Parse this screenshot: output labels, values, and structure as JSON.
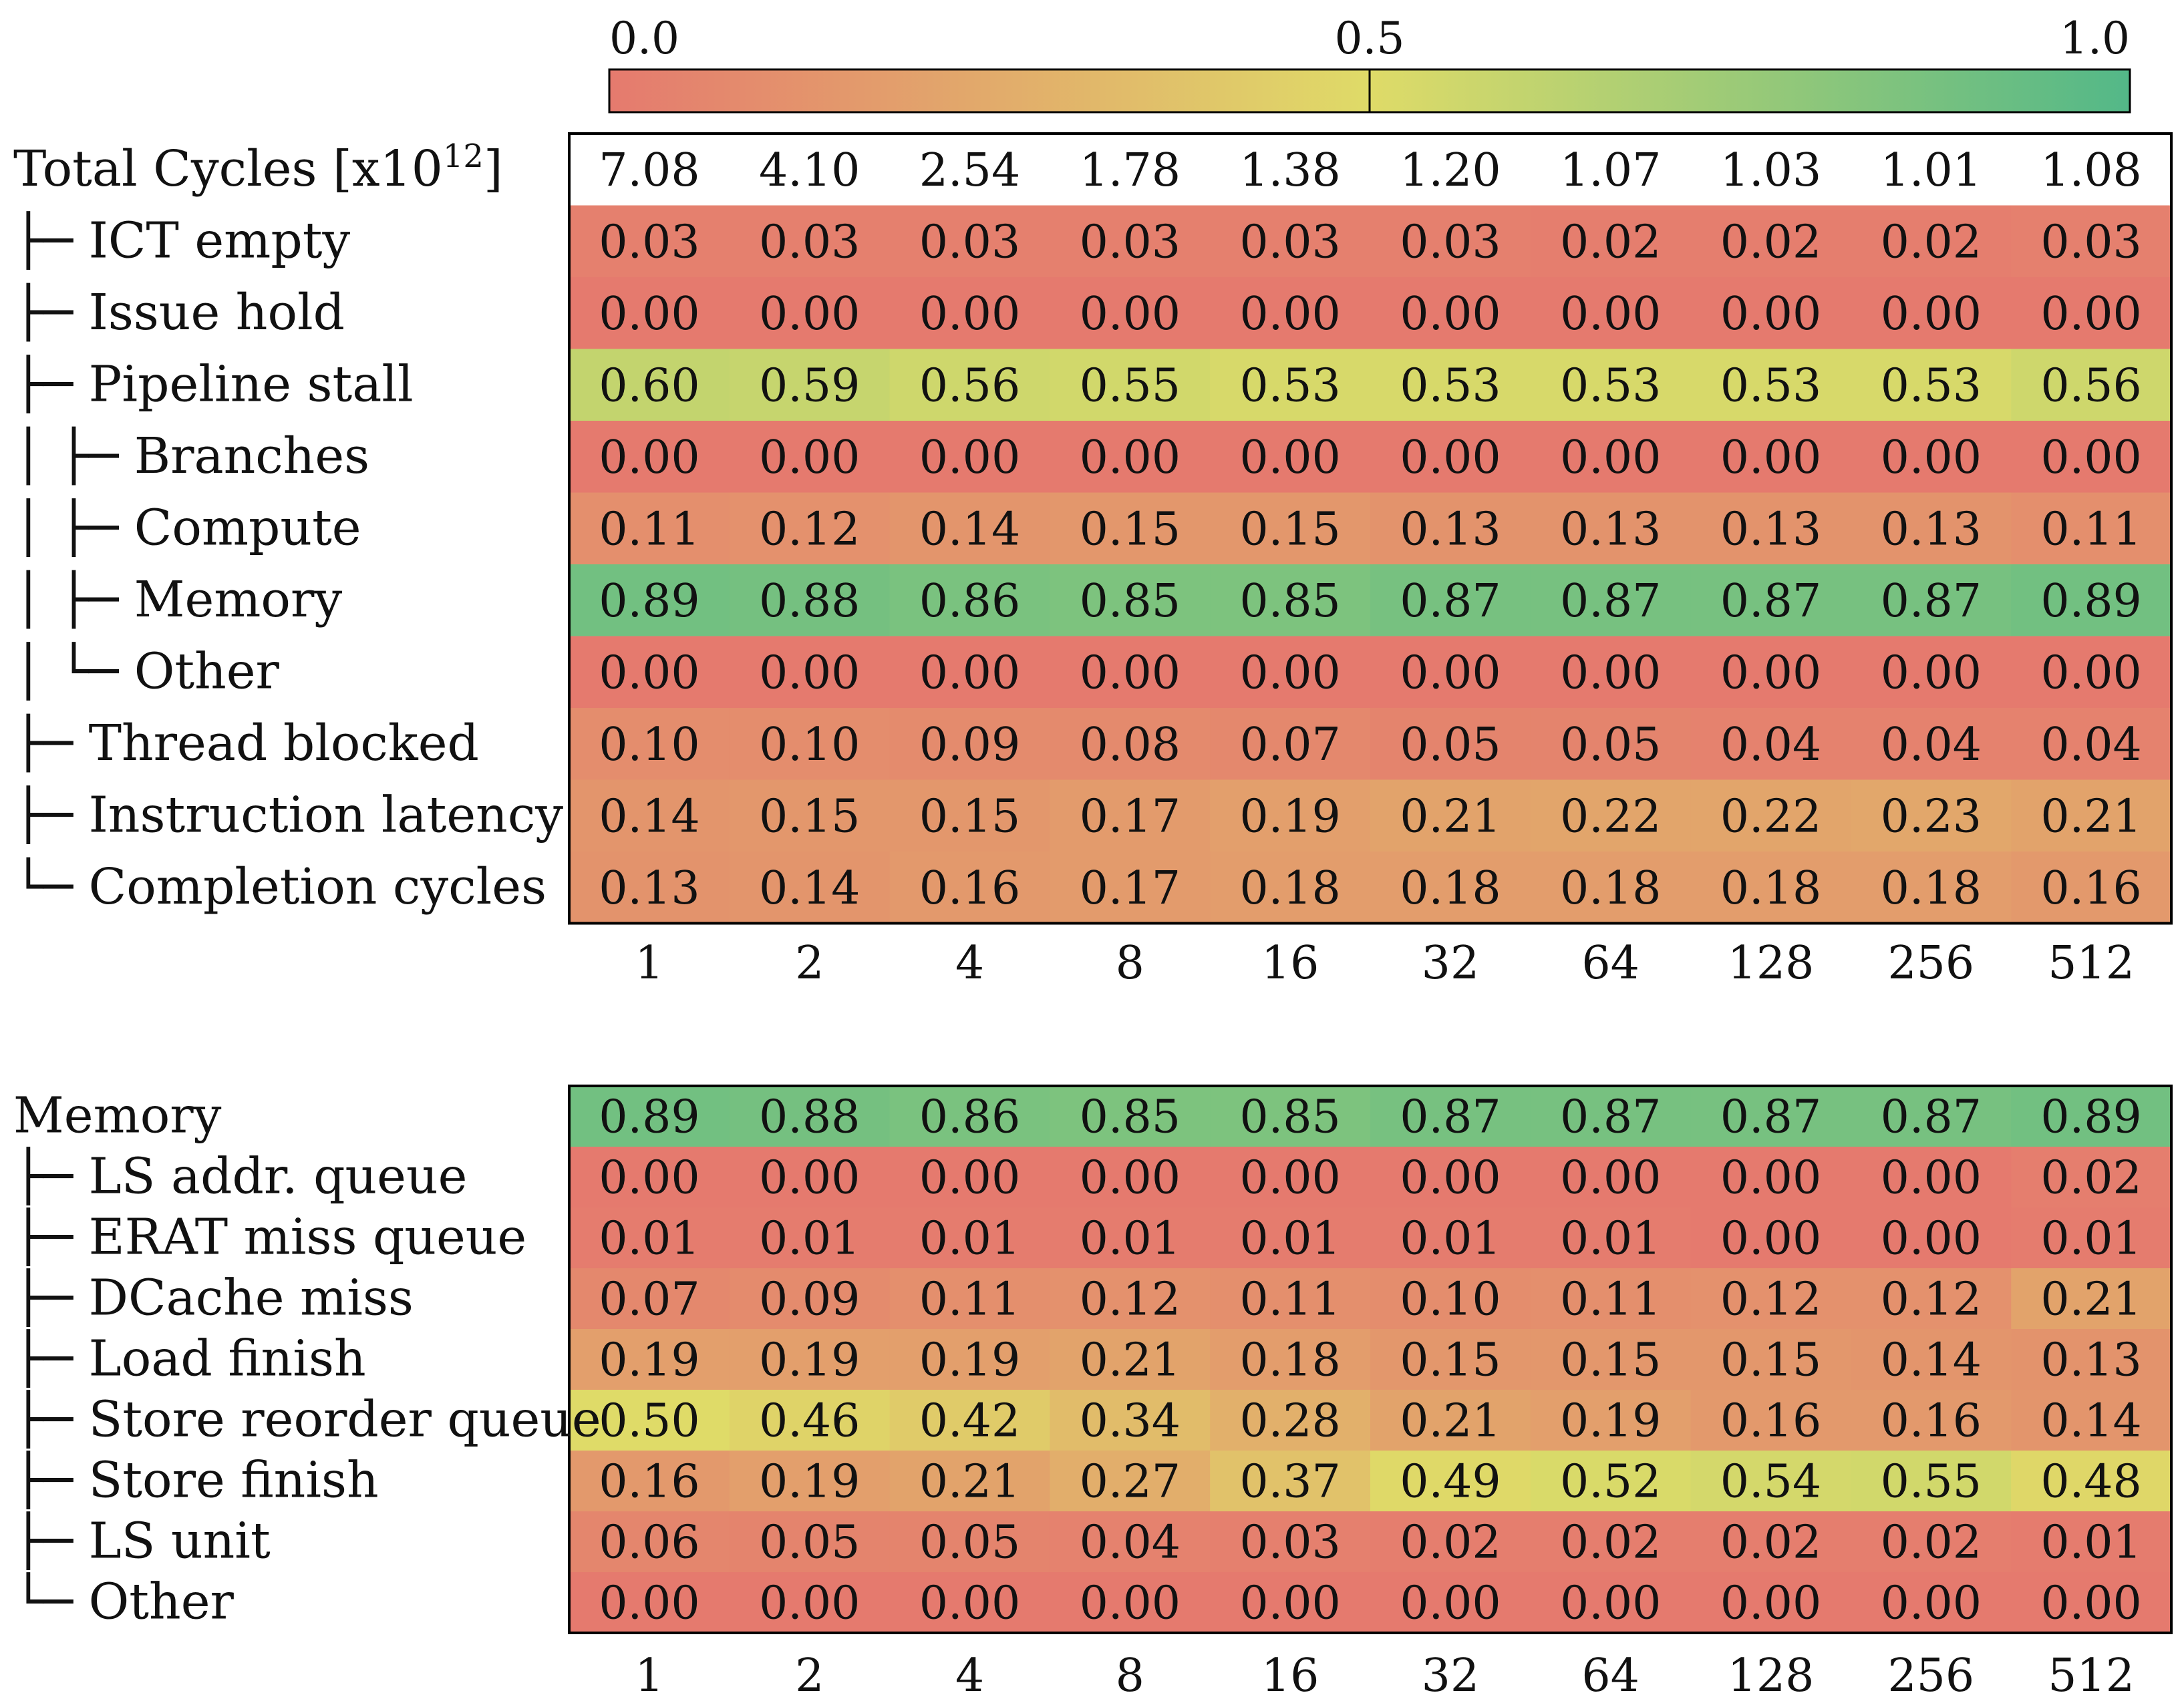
{
  "colorbar": {
    "ticks": [
      {
        "value": 0.0,
        "label": "0.0"
      },
      {
        "value": 0.5,
        "label": "0.5"
      },
      {
        "value": 1.0,
        "label": "1.0"
      }
    ],
    "colors": {
      "low": "#e57a6e",
      "mid": "#dfdb68",
      "high": "#53b888"
    }
  },
  "chart_data": [
    {
      "type": "heatmap",
      "title": "",
      "xlabel": "",
      "ylabel": "",
      "vlim": [
        0,
        1
      ],
      "x": [
        "1",
        "2",
        "4",
        "8",
        "16",
        "32",
        "64",
        "128",
        "256",
        "512"
      ],
      "total_row": {
        "label": "Total Cycles [x10",
        "label_sup": "12",
        "label_tail": "]",
        "values": [
          "7.08",
          "4.10",
          "2.54",
          "1.78",
          "1.38",
          "1.20",
          "1.07",
          "1.03",
          "1.01",
          "1.08"
        ]
      },
      "rows": [
        {
          "label": "ICT empty",
          "tree": "├─ ",
          "values": [
            0.03,
            0.03,
            0.03,
            0.03,
            0.03,
            0.03,
            0.02,
            0.02,
            0.02,
            0.03
          ]
        },
        {
          "label": "Issue hold",
          "tree": "├─ ",
          "values": [
            0.0,
            0.0,
            0.0,
            0.0,
            0.0,
            0.0,
            0.0,
            0.0,
            0.0,
            0.0
          ]
        },
        {
          "label": "Pipeline stall",
          "tree": "├─ ",
          "values": [
            0.6,
            0.59,
            0.56,
            0.55,
            0.53,
            0.53,
            0.53,
            0.53,
            0.53,
            0.56
          ]
        },
        {
          "label": "Branches",
          "tree": "│  ├─ ",
          "values": [
            0.0,
            0.0,
            0.0,
            0.0,
            0.0,
            0.0,
            0.0,
            0.0,
            0.0,
            0.0
          ]
        },
        {
          "label": "Compute",
          "tree": "│  ├─ ",
          "values": [
            0.11,
            0.12,
            0.14,
            0.15,
            0.15,
            0.13,
            0.13,
            0.13,
            0.13,
            0.11
          ]
        },
        {
          "label": "Memory",
          "tree": "│  ├─ ",
          "values": [
            0.89,
            0.88,
            0.86,
            0.85,
            0.85,
            0.87,
            0.87,
            0.87,
            0.87,
            0.89
          ]
        },
        {
          "label": "Other",
          "tree": "│  └─ ",
          "values": [
            0.0,
            0.0,
            0.0,
            0.0,
            0.0,
            0.0,
            0.0,
            0.0,
            0.0,
            0.0
          ]
        },
        {
          "label": "Thread blocked",
          "tree": "├─ ",
          "values": [
            0.1,
            0.1,
            0.09,
            0.08,
            0.07,
            0.05,
            0.05,
            0.04,
            0.04,
            0.04
          ]
        },
        {
          "label": "Instruction latency",
          "tree": "├─ ",
          "values": [
            0.14,
            0.15,
            0.15,
            0.17,
            0.19,
            0.21,
            0.22,
            0.22,
            0.23,
            0.21
          ]
        },
        {
          "label": "Completion cycles",
          "tree": "└─ ",
          "values": [
            0.13,
            0.14,
            0.16,
            0.17,
            0.18,
            0.18,
            0.18,
            0.18,
            0.18,
            0.16
          ]
        }
      ]
    },
    {
      "type": "heatmap",
      "title": "",
      "xlabel": "",
      "ylabel": "",
      "vlim": [
        0,
        1
      ],
      "x": [
        "1",
        "2",
        "4",
        "8",
        "16",
        "32",
        "64",
        "128",
        "256",
        "512"
      ],
      "rows": [
        {
          "label": "Memory",
          "tree": "",
          "values": [
            0.89,
            0.88,
            0.86,
            0.85,
            0.85,
            0.87,
            0.87,
            0.87,
            0.87,
            0.89
          ]
        },
        {
          "label": "LS addr. queue",
          "tree": "├─ ",
          "values": [
            0.0,
            0.0,
            0.0,
            0.0,
            0.0,
            0.0,
            0.0,
            0.0,
            0.0,
            0.02
          ]
        },
        {
          "label": "ERAT miss queue",
          "tree": "├─ ",
          "values": [
            0.01,
            0.01,
            0.01,
            0.01,
            0.01,
            0.01,
            0.01,
            0.0,
            0.0,
            0.01
          ]
        },
        {
          "label": "DCache miss",
          "tree": "├─ ",
          "values": [
            0.07,
            0.09,
            0.11,
            0.12,
            0.11,
            0.1,
            0.11,
            0.12,
            0.12,
            0.21
          ]
        },
        {
          "label": "Load finish",
          "tree": "├─ ",
          "values": [
            0.19,
            0.19,
            0.19,
            0.21,
            0.18,
            0.15,
            0.15,
            0.15,
            0.14,
            0.13
          ]
        },
        {
          "label": "Store reorder queue",
          "tree": "├─ ",
          "values": [
            0.5,
            0.46,
            0.42,
            0.34,
            0.28,
            0.21,
            0.19,
            0.16,
            0.16,
            0.14
          ]
        },
        {
          "label": "Store finish",
          "tree": "├─ ",
          "values": [
            0.16,
            0.19,
            0.21,
            0.27,
            0.37,
            0.49,
            0.52,
            0.54,
            0.55,
            0.48
          ]
        },
        {
          "label": "LS unit",
          "tree": "├─ ",
          "values": [
            0.06,
            0.05,
            0.05,
            0.04,
            0.03,
            0.02,
            0.02,
            0.02,
            0.02,
            0.01
          ]
        },
        {
          "label": "Other",
          "tree": "└─ ",
          "values": [
            0.0,
            0.0,
            0.0,
            0.0,
            0.0,
            0.0,
            0.0,
            0.0,
            0.0,
            0.0
          ]
        }
      ]
    }
  ]
}
